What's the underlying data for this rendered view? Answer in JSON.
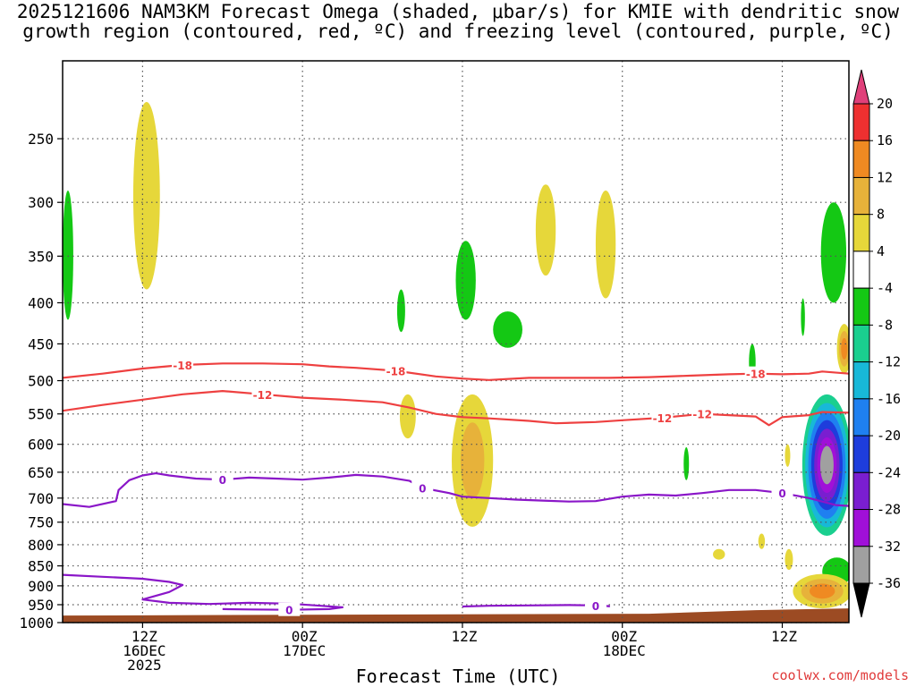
{
  "title": {
    "line1": "2025121606 NAM3KM Forecast Omega (shaded, μbar/s) for KMIE with dendritic snow",
    "line2": "growth region (contoured, red, ºC) and freezing level (contoured, purple, ºC)"
  },
  "credit": "coolwx.com/models",
  "chart_data": {
    "type": "time-height",
    "xlabel": "Forecast Time (UTC)",
    "ylabel": "",
    "y_axis": {
      "scale": "log-pressure (hPa), inverted",
      "ticks": [
        250,
        300,
        350,
        400,
        450,
        500,
        550,
        600,
        650,
        700,
        750,
        800,
        850,
        900,
        950,
        1000
      ],
      "ylim": [
        1000,
        200
      ]
    },
    "x_axis": {
      "range_hours": [
        0,
        59
      ],
      "ticks": [
        {
          "hour": 6,
          "lines": [
            "12Z",
            "16DEC",
            "2025"
          ]
        },
        {
          "hour": 18,
          "lines": [
            "00Z",
            "17DEC"
          ]
        },
        {
          "hour": 30,
          "lines": [
            "12Z"
          ]
        },
        {
          "hour": 42,
          "lines": [
            "00Z",
            "18DEC"
          ]
        },
        {
          "hour": 54,
          "lines": [
            "12Z"
          ]
        }
      ]
    },
    "grid": true,
    "colorbar": {
      "labels": [
        "20",
        "16",
        "12",
        "8",
        "4",
        "-4",
        "-8",
        "-12",
        "-16",
        "-20",
        "-24",
        "-28",
        "-32",
        "-36"
      ],
      "colors": [
        "#e0407a",
        "#ee3030",
        "#ef8a22",
        "#e7b23a",
        "#e6d73a",
        "#ffffff",
        "#14c814",
        "#1acf8f",
        "#18b8d8",
        "#1f80f0",
        "#1e3ddc",
        "#7a1ed0",
        "#a010d8",
        "#a0a0a0",
        "#000000"
      ]
    },
    "contours": {
      "dgz_red": [
        {
          "label": "-18",
          "points": [
            [
              0,
              496
            ],
            [
              3,
              490
            ],
            [
              6,
              483
            ],
            [
              9,
              478
            ],
            [
              12,
              476
            ],
            [
              15,
              476
            ],
            [
              18,
              477
            ],
            [
              20,
              480
            ],
            [
              22,
              482
            ],
            [
              25,
              486
            ],
            [
              28,
              494
            ],
            [
              30,
              497
            ],
            [
              32,
              499
            ],
            [
              35,
              496
            ],
            [
              38,
              496
            ],
            [
              41,
              496
            ],
            [
              44,
              495
            ],
            [
              47,
              493
            ],
            [
              50,
              491
            ],
            [
              52,
              490
            ],
            [
              54,
              491
            ],
            [
              56,
              490
            ],
            [
              57,
              487
            ],
            [
              59,
              490
            ]
          ]
        },
        {
          "label": "-12",
          "points": [
            [
              0,
              545
            ],
            [
              3,
              536
            ],
            [
              6,
              528
            ],
            [
              9,
              520
            ],
            [
              12,
              515
            ],
            [
              15,
              520
            ],
            [
              18,
              525
            ],
            [
              21,
              528
            ],
            [
              24,
              532
            ],
            [
              26,
              540
            ],
            [
              28,
              550
            ],
            [
              30,
              555
            ],
            [
              32,
              557
            ],
            [
              35,
              561
            ],
            [
              37,
              565
            ],
            [
              40,
              563
            ],
            [
              42,
              560
            ],
            [
              45,
              556
            ],
            [
              48,
              550
            ],
            [
              50,
              552
            ],
            [
              52,
              554
            ],
            [
              53,
              568
            ],
            [
              54,
              555
            ],
            [
              56,
              552
            ],
            [
              57,
              547
            ],
            [
              59,
              548
            ]
          ]
        }
      ],
      "freezing_purple": [
        {
          "label": "0",
          "points": [
            [
              0,
              712
            ],
            [
              2,
              718
            ],
            [
              4,
              706
            ],
            [
              4.2,
              684
            ],
            [
              5,
              665
            ],
            [
              6,
              656
            ],
            [
              7,
              652
            ],
            [
              8,
              656
            ],
            [
              10,
              662
            ],
            [
              12,
              664
            ],
            [
              14,
              660
            ],
            [
              16,
              662
            ],
            [
              18,
              664
            ],
            [
              20,
              660
            ],
            [
              22,
              655
            ],
            [
              24,
              658
            ],
            [
              26,
              666
            ],
            [
              27,
              680
            ],
            [
              29,
              690
            ],
            [
              30,
              697
            ],
            [
              32,
              700
            ],
            [
              34,
              703
            ],
            [
              36,
              705
            ],
            [
              38,
              707
            ],
            [
              40,
              706
            ],
            [
              42,
              697
            ],
            [
              44,
              693
            ],
            [
              46,
              695
            ],
            [
              48,
              690
            ],
            [
              50,
              684
            ],
            [
              52,
              684
            ],
            [
              54,
              690
            ],
            [
              56,
              700
            ],
            [
              58,
              714
            ],
            [
              59,
              716
            ]
          ]
        },
        {
          "label": "0",
          "points": [
            [
              0,
              872
            ],
            [
              3,
              877
            ],
            [
              6,
              882
            ],
            [
              8,
              890
            ],
            [
              9,
              898
            ],
            [
              8,
              916
            ],
            [
              6,
              936
            ],
            [
              8,
              945
            ],
            [
              11,
              948
            ],
            [
              14,
              945
            ],
            [
              17,
              947
            ],
            [
              19,
              952
            ],
            [
              21,
              957
            ],
            [
              20,
              962
            ],
            [
              17,
              964
            ],
            [
              14,
              963
            ],
            [
              12,
              962
            ]
          ]
        },
        {
          "label": "0",
          "points": [
            [
              30,
              955
            ],
            [
              32,
              953
            ],
            [
              35,
              952
            ],
            [
              38,
              951
            ],
            [
              40,
              952
            ],
            [
              41,
              954
            ],
            [
              41,
              957
            ]
          ]
        }
      ]
    },
    "omega_shading": [
      {
        "value_range": [
          4,
          8
        ],
        "hour_range": [
          5.3,
          7.3
        ],
        "pressure_range": [
          385,
          225
        ]
      },
      {
        "value_range": [
          -8,
          -4
        ],
        "hour_range": [
          0,
          0.8
        ],
        "pressure_range": [
          420,
          290
        ]
      },
      {
        "value_range": [
          4,
          8
        ],
        "hour_range": [
          35.5,
          37
        ],
        "pressure_range": [
          370,
          285
        ]
      },
      {
        "value_range": [
          4,
          8
        ],
        "hour_range": [
          40,
          41.5
        ],
        "pressure_range": [
          395,
          290
        ]
      },
      {
        "value_range": [
          -8,
          -4
        ],
        "hour_range": [
          29.5,
          31
        ],
        "pressure_range": [
          420,
          335
        ]
      },
      {
        "value_range": [
          -8,
          -4
        ],
        "hour_range": [
          25.1,
          25.7
        ],
        "pressure_range": [
          435,
          385
        ]
      },
      {
        "value_range": [
          -8,
          -4
        ],
        "hour_range": [
          32.3,
          34.5
        ],
        "pressure_range": [
          455,
          410
        ]
      },
      {
        "value_range": [
          4,
          8
        ],
        "hour_range": [
          25.3,
          26.5
        ],
        "pressure_range": [
          590,
          520
        ]
      },
      {
        "value_range": [
          4,
          12
        ],
        "hour_range": [
          29.2,
          32.3
        ],
        "pressure_range": [
          760,
          520
        ]
      },
      {
        "value_range": [
          -8,
          -4
        ],
        "hour_range": [
          56.9,
          58.8
        ],
        "pressure_range": [
          400,
          300
        ]
      },
      {
        "value_range": [
          -8,
          -4
        ],
        "hour_range": [
          55.4,
          55.7
        ],
        "pressure_range": [
          440,
          395
        ]
      },
      {
        "value_range": [
          -8,
          -4
        ],
        "hour_range": [
          51.5,
          52
        ],
        "pressure_range": [
          500,
          450
        ]
      },
      {
        "value_range": [
          4,
          16
        ],
        "hour_range": [
          58.1,
          59.2
        ],
        "pressure_range": [
          490,
          425
        ]
      },
      {
        "value_range": [
          -36,
          -8
        ],
        "hour_range": [
          55.5,
          59.2
        ],
        "pressure_range": [
          780,
          520
        ]
      },
      {
        "value_range": [
          -8,
          -4
        ],
        "hour_range": [
          46.6,
          47
        ],
        "pressure_range": [
          665,
          605
        ]
      },
      {
        "value_range": [
          4,
          8
        ],
        "hour_range": [
          52.2,
          52.7
        ],
        "pressure_range": [
          810,
          775
        ]
      },
      {
        "value_range": [
          4,
          8
        ],
        "hour_range": [
          48.8,
          49.7
        ],
        "pressure_range": [
          835,
          810
        ]
      },
      {
        "value_range": [
          4,
          8
        ],
        "hour_range": [
          54.2,
          54.8
        ],
        "pressure_range": [
          860,
          810
        ]
      },
      {
        "value_range": [
          -8,
          -4
        ],
        "hour_range": [
          57,
          59.2
        ],
        "pressure_range": [
          900,
          830
        ]
      },
      {
        "value_range": [
          4,
          16
        ],
        "hour_range": [
          54.8,
          59.2
        ],
        "pressure_range": [
          960,
          870
        ]
      },
      {
        "value_range": [
          4,
          8
        ],
        "hour_range": [
          54.2,
          54.6
        ],
        "pressure_range": [
          640,
          600
        ]
      }
    ],
    "terrain": {
      "color": "#9c4b23",
      "pressure_top": 975
    }
  }
}
